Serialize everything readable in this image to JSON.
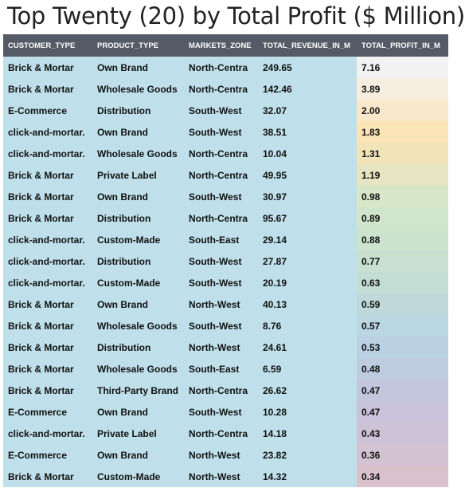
{
  "title": "Top Twenty (20) by Total Profit ($ Million)",
  "colors": {
    "header_bg": "#555b66",
    "dim_cell_bg": "#bfe0ea",
    "profit_scale": [
      "#f2f2f2",
      "#fde3b3",
      "#d3e7cb",
      "#c6dfd1",
      "#b7d3e4",
      "#c7c3dc",
      "#d9c2cc"
    ]
  },
  "chart_data": {
    "type": "table",
    "title": "Top Twenty (20) by Total Profit ($ Million)",
    "columns": [
      "CUSTOMER_TYPE",
      "PRODUCT_TYPE",
      "MARKETS_ZONE",
      "TOTAL_REVENUE_IN_M",
      "TOTAL_PROFIT_IN_M"
    ],
    "rows": [
      [
        "Brick & Mortar",
        "Own Brand",
        "North-Centra",
        "249.65",
        "7.16"
      ],
      [
        "Brick & Mortar",
        "Wholesale Goods",
        "North-Centra",
        "142.46",
        "3.89"
      ],
      [
        "E-Commerce",
        "Distribution",
        "South-West",
        "32.07",
        "2.00"
      ],
      [
        "click-and-mortar.",
        "Own Brand",
        "South-West",
        "38.51",
        "1.83"
      ],
      [
        "click-and-mortar.",
        "Wholesale Goods",
        "North-Centra",
        "10.04",
        "1.31"
      ],
      [
        "Brick & Mortar",
        "Private Label",
        "North-Centra",
        "49.95",
        "1.19"
      ],
      [
        "Brick & Mortar",
        "Own Brand",
        "South-West",
        "30.97",
        "0.98"
      ],
      [
        "Brick & Mortar",
        "Distribution",
        "North-Centra",
        "95.67",
        "0.89"
      ],
      [
        "click-and-mortar.",
        "Custom-Made",
        "South-East",
        "29.14",
        "0.88"
      ],
      [
        "click-and-mortar.",
        "Distribution",
        "South-West",
        "27.87",
        "0.77"
      ],
      [
        "click-and-mortar.",
        "Custom-Made",
        "South-West",
        "20.19",
        "0.63"
      ],
      [
        "Brick & Mortar",
        "Own Brand",
        "North-West",
        "40.13",
        "0.59"
      ],
      [
        "Brick & Mortar",
        "Wholesale Goods",
        "South-West",
        "8.76",
        "0.57"
      ],
      [
        "Brick & Mortar",
        "Distribution",
        "North-West",
        "24.61",
        "0.53"
      ],
      [
        "Brick & Mortar",
        "Wholesale Goods",
        "South-East",
        "6.59",
        "0.48"
      ],
      [
        "Brick & Mortar",
        "Third-Party Brand",
        "North-Centra",
        "26.62",
        "0.47"
      ],
      [
        "E-Commerce",
        "Own Brand",
        "South-West",
        "10.28",
        "0.47"
      ],
      [
        "click-and-mortar.",
        "Private Label",
        "North-Centra",
        "14.18",
        "0.43"
      ],
      [
        "E-Commerce",
        "Own Brand",
        "North-West",
        "23.82",
        "0.36"
      ],
      [
        "Brick & Mortar",
        "Custom-Made",
        "North-West",
        "14.32",
        "0.34"
      ]
    ]
  }
}
